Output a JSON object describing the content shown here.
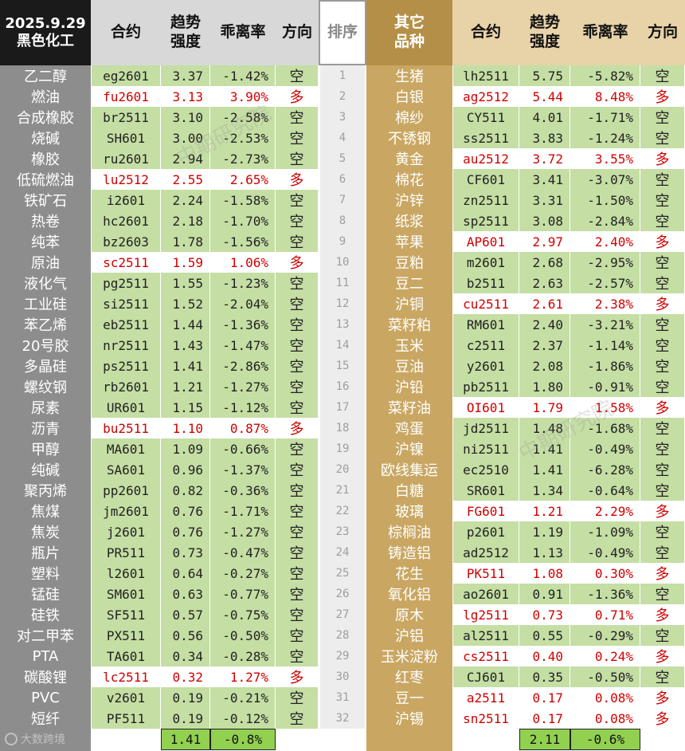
{
  "header": {
    "date": "2025.9.29",
    "left_sector": "黑色化工",
    "right_sector_line1": "其它",
    "right_sector_line2": "品种",
    "contract": "合约",
    "strength_line1": "趋势",
    "strength_line2": "强度",
    "deviation": "乖离率",
    "direction": "方向",
    "rank": "排序"
  },
  "colors": {
    "green": "#c5dea4",
    "red": "#d00000",
    "left_name_bg": "#8d8d8d",
    "right_name_bg": "#c9a762",
    "gold": "#b48f47",
    "tan": "#e8d3a8",
    "summary": "#92d050"
  },
  "left_rows": [
    {
      "name": "乙二醇",
      "code": "eg2601",
      "strength": "3.37",
      "deviation": "-1.42%",
      "direction": "空"
    },
    {
      "name": "燃油",
      "code": "fu2601",
      "strength": "3.13",
      "deviation": "3.90%",
      "direction": "多"
    },
    {
      "name": "合成橡胶",
      "code": "br2511",
      "strength": "3.10",
      "deviation": "-2.58%",
      "direction": "空"
    },
    {
      "name": "烧碱",
      "code": "SH601",
      "strength": "3.00",
      "deviation": "-2.53%",
      "direction": "空"
    },
    {
      "name": "橡胶",
      "code": "ru2601",
      "strength": "2.94",
      "deviation": "-2.73%",
      "direction": "空"
    },
    {
      "name": "低硫燃油",
      "code": "lu2512",
      "strength": "2.55",
      "deviation": "2.65%",
      "direction": "多"
    },
    {
      "name": "铁矿石",
      "code": "i2601",
      "strength": "2.24",
      "deviation": "-1.58%",
      "direction": "空"
    },
    {
      "name": "热卷",
      "code": "hc2601",
      "strength": "2.18",
      "deviation": "-1.70%",
      "direction": "空"
    },
    {
      "name": "纯苯",
      "code": "bz2603",
      "strength": "1.78",
      "deviation": "-1.56%",
      "direction": "空"
    },
    {
      "name": "原油",
      "code": "sc2511",
      "strength": "1.59",
      "deviation": "1.06%",
      "direction": "多"
    },
    {
      "name": "液化气",
      "code": "pg2511",
      "strength": "1.55",
      "deviation": "-1.23%",
      "direction": "空"
    },
    {
      "name": "工业硅",
      "code": "si2511",
      "strength": "1.52",
      "deviation": "-2.04%",
      "direction": "空"
    },
    {
      "name": "苯乙烯",
      "code": "eb2511",
      "strength": "1.44",
      "deviation": "-1.36%",
      "direction": "空"
    },
    {
      "name": "20号胶",
      "code": "nr2511",
      "strength": "1.43",
      "deviation": "-1.47%",
      "direction": "空"
    },
    {
      "name": "多晶硅",
      "code": "ps2511",
      "strength": "1.41",
      "deviation": "-2.86%",
      "direction": "空"
    },
    {
      "name": "螺纹钢",
      "code": "rb2601",
      "strength": "1.21",
      "deviation": "-1.27%",
      "direction": "空"
    },
    {
      "name": "尿素",
      "code": "UR601",
      "strength": "1.15",
      "deviation": "-1.12%",
      "direction": "空"
    },
    {
      "name": "沥青",
      "code": "bu2511",
      "strength": "1.10",
      "deviation": "0.87%",
      "direction": "多"
    },
    {
      "name": "甲醇",
      "code": "MA601",
      "strength": "1.09",
      "deviation": "-0.66%",
      "direction": "空"
    },
    {
      "name": "纯碱",
      "code": "SA601",
      "strength": "0.96",
      "deviation": "-1.37%",
      "direction": "空"
    },
    {
      "name": "聚丙烯",
      "code": "pp2601",
      "strength": "0.82",
      "deviation": "-0.36%",
      "direction": "空"
    },
    {
      "name": "焦煤",
      "code": "jm2601",
      "strength": "0.76",
      "deviation": "-1.71%",
      "direction": "空"
    },
    {
      "name": "焦炭",
      "code": "j2601",
      "strength": "0.76",
      "deviation": "-1.27%",
      "direction": "空"
    },
    {
      "name": "瓶片",
      "code": "PR511",
      "strength": "0.73",
      "deviation": "-0.47%",
      "direction": "空"
    },
    {
      "name": "塑料",
      "code": "l2601",
      "strength": "0.64",
      "deviation": "-0.27%",
      "direction": "空"
    },
    {
      "name": "锰硅",
      "code": "SM601",
      "strength": "0.63",
      "deviation": "-0.77%",
      "direction": "空"
    },
    {
      "name": "硅铁",
      "code": "SF511",
      "strength": "0.57",
      "deviation": "-0.75%",
      "direction": "空"
    },
    {
      "name": "对二甲苯",
      "code": "PX511",
      "strength": "0.56",
      "deviation": "-0.50%",
      "direction": "空"
    },
    {
      "name": "PTA",
      "code": "TA601",
      "strength": "0.34",
      "deviation": "-0.28%",
      "direction": "空"
    },
    {
      "name": "碳酸锂",
      "code": "lc2511",
      "strength": "0.32",
      "deviation": "1.27%",
      "direction": "多"
    },
    {
      "name": "PVC",
      "code": "v2601",
      "strength": "0.19",
      "deviation": "-0.21%",
      "direction": "空"
    },
    {
      "name": "短纤",
      "code": "PF511",
      "strength": "0.19",
      "deviation": "-0.12%",
      "direction": "空"
    }
  ],
  "right_rows": [
    {
      "name": "生猪",
      "code": "lh2511",
      "strength": "5.75",
      "deviation": "-5.82%",
      "direction": "空"
    },
    {
      "name": "白银",
      "code": "ag2512",
      "strength": "5.44",
      "deviation": "8.48%",
      "direction": "多"
    },
    {
      "name": "棉纱",
      "code": "CY511",
      "strength": "4.01",
      "deviation": "-1.71%",
      "direction": "空"
    },
    {
      "name": "不锈钢",
      "code": "ss2511",
      "strength": "3.83",
      "deviation": "-1.24%",
      "direction": "空"
    },
    {
      "name": "黄金",
      "code": "au2512",
      "strength": "3.72",
      "deviation": "3.55%",
      "direction": "多"
    },
    {
      "name": "棉花",
      "code": "CF601",
      "strength": "3.41",
      "deviation": "-3.07%",
      "direction": "空"
    },
    {
      "name": "沪锌",
      "code": "zn2511",
      "strength": "3.31",
      "deviation": "-1.50%",
      "direction": "空"
    },
    {
      "name": "纸浆",
      "code": "sp2511",
      "strength": "3.08",
      "deviation": "-2.84%",
      "direction": "空"
    },
    {
      "name": "苹果",
      "code": "AP601",
      "strength": "2.97",
      "deviation": "2.40%",
      "direction": "多"
    },
    {
      "name": "豆粕",
      "code": "m2601",
      "strength": "2.68",
      "deviation": "-2.95%",
      "direction": "空"
    },
    {
      "name": "豆二",
      "code": "b2511",
      "strength": "2.63",
      "deviation": "-2.57%",
      "direction": "空"
    },
    {
      "name": "沪铜",
      "code": "cu2511",
      "strength": "2.61",
      "deviation": "2.38%",
      "direction": "多"
    },
    {
      "name": "菜籽粕",
      "code": "RM601",
      "strength": "2.40",
      "deviation": "-3.21%",
      "direction": "空"
    },
    {
      "name": "玉米",
      "code": "c2511",
      "strength": "2.37",
      "deviation": "-1.14%",
      "direction": "空"
    },
    {
      "name": "豆油",
      "code": "y2601",
      "strength": "2.08",
      "deviation": "-1.86%",
      "direction": "空"
    },
    {
      "name": "沪铅",
      "code": "pb2511",
      "strength": "1.80",
      "deviation": "-0.91%",
      "direction": "空"
    },
    {
      "name": "菜籽油",
      "code": "OI601",
      "strength": "1.79",
      "deviation": "1.58%",
      "direction": "多"
    },
    {
      "name": "鸡蛋",
      "code": "jd2511",
      "strength": "1.48",
      "deviation": "-1.68%",
      "direction": "空"
    },
    {
      "name": "沪镍",
      "code": "ni2511",
      "strength": "1.41",
      "deviation": "-0.49%",
      "direction": "空"
    },
    {
      "name": "欧线集运",
      "code": "ec2510",
      "strength": "1.41",
      "deviation": "-6.28%",
      "direction": "空"
    },
    {
      "name": "白糖",
      "code": "SR601",
      "strength": "1.34",
      "deviation": "-0.64%",
      "direction": "空"
    },
    {
      "name": "玻璃",
      "code": "FG601",
      "strength": "1.21",
      "deviation": "2.29%",
      "direction": "多"
    },
    {
      "name": "棕榈油",
      "code": "p2601",
      "strength": "1.19",
      "deviation": "-1.09%",
      "direction": "空"
    },
    {
      "name": "铸造铝",
      "code": "ad2512",
      "strength": "1.13",
      "deviation": "-0.49%",
      "direction": "空"
    },
    {
      "name": "花生",
      "code": "PK511",
      "strength": "1.08",
      "deviation": "0.30%",
      "direction": "多"
    },
    {
      "name": "氧化铝",
      "code": "ao2601",
      "strength": "0.91",
      "deviation": "-1.36%",
      "direction": "空"
    },
    {
      "name": "原木",
      "code": "lg2511",
      "strength": "0.73",
      "deviation": "0.71%",
      "direction": "多"
    },
    {
      "name": "沪铝",
      "code": "al2511",
      "strength": "0.55",
      "deviation": "-0.29%",
      "direction": "空"
    },
    {
      "name": "玉米淀粉",
      "code": "cs2511",
      "strength": "0.40",
      "deviation": "0.24%",
      "direction": "多"
    },
    {
      "name": "红枣",
      "code": "CJ601",
      "strength": "0.35",
      "deviation": "-0.50%",
      "direction": "空"
    },
    {
      "name": "豆一",
      "code": "a2511",
      "strength": "0.17",
      "deviation": "0.08%",
      "direction": "多"
    },
    {
      "name": "沪锡",
      "code": "sn2511",
      "strength": "0.17",
      "deviation": "0.08%",
      "direction": "多"
    }
  ],
  "ranks": [
    "1",
    "2",
    "3",
    "4",
    "5",
    "6",
    "7",
    "8",
    "9",
    "10",
    "11",
    "12",
    "13",
    "14",
    "15",
    "16",
    "17",
    "18",
    "19",
    "20",
    "21",
    "22",
    "23",
    "24",
    "25",
    "26",
    "27",
    "28",
    "29",
    "30",
    "31",
    "32"
  ],
  "summary": {
    "left_strength": "1.41",
    "left_deviation": "-0.8%",
    "right_strength": "2.11",
    "right_deviation": "-0.6%"
  },
  "watermarks": [
    "中期研究院",
    "中期研究院"
  ],
  "brand": "大数跨境"
}
